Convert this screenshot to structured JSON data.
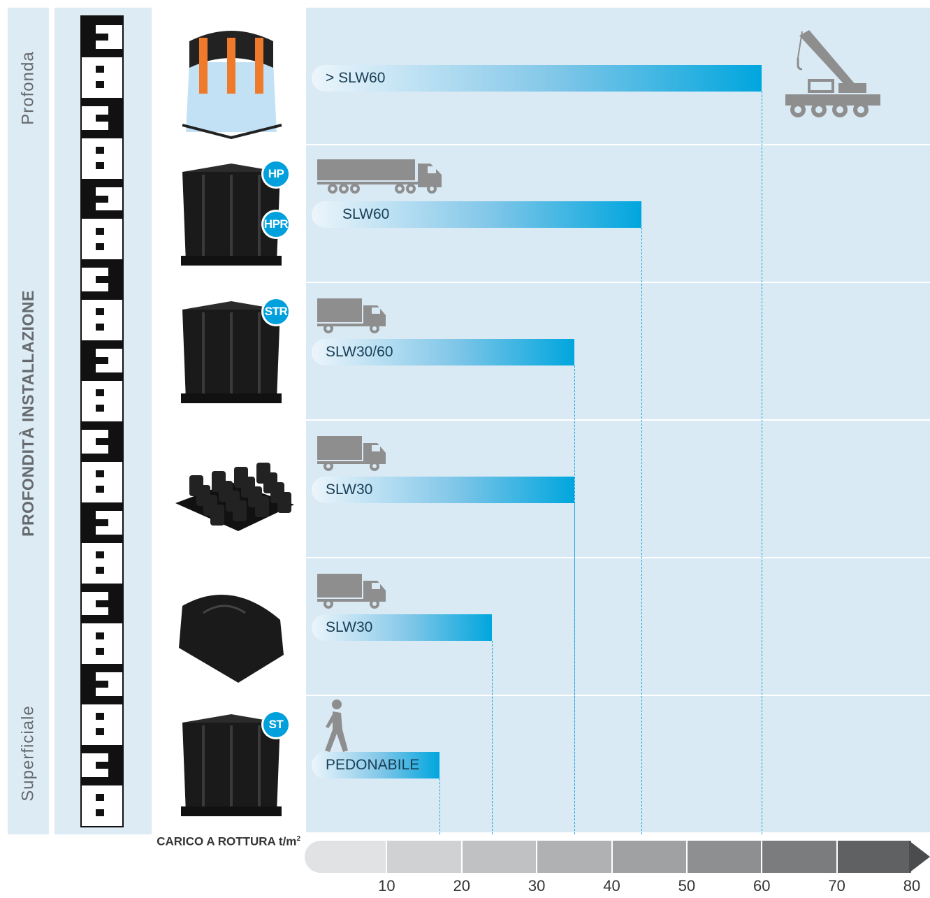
{
  "labels": {
    "deep": "Profonda",
    "axis": "PROFONDITÀ INSTALLAZIONE",
    "shallow": "Superficiale"
  },
  "chart_data": {
    "type": "bar",
    "orientation": "horizontal",
    "xlabel": "CARICO A ROTTURA t/m",
    "xlabel_superscript": "2",
    "xlim": [
      0,
      80
    ],
    "ticks": [
      "10",
      "20",
      "30",
      "40",
      "50",
      "60",
      "70",
      "80"
    ],
    "bars": [
      {
        "label": "> SLW60",
        "value": 60,
        "badges": [],
        "icon": "crane-icon"
      },
      {
        "label": "SLW60",
        "value": 44,
        "badges": [
          "HP",
          "HPR"
        ],
        "icon": "semi-truck-icon"
      },
      {
        "label": "SLW30/60",
        "value": 35,
        "badges": [
          "STR"
        ],
        "icon": "truck-icon"
      },
      {
        "label": "SLW30",
        "value": 35,
        "badges": [],
        "icon": "truck-icon"
      },
      {
        "label": "SLW30",
        "value": 24,
        "badges": [],
        "icon": "truck-icon"
      },
      {
        "label": "PEDONABILE",
        "value": 17,
        "badges": [
          "ST"
        ],
        "icon": "pedestrian-icon"
      }
    ]
  },
  "colors": {
    "bar_end": "#00a6de",
    "badge": "#00a0dc",
    "panel": "#d9eaf5",
    "icon": "#8e8e8e"
  }
}
